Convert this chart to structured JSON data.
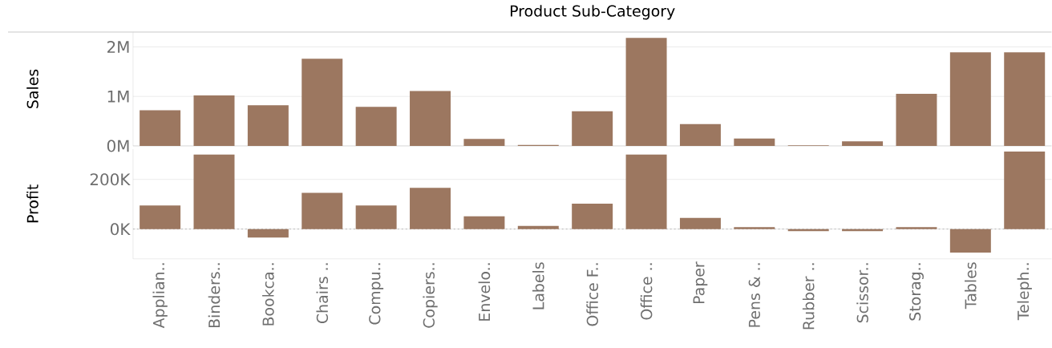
{
  "chart_data": [
    {
      "type": "bar",
      "title": "Product Sub-Category",
      "ylabel": "Sales",
      "categories": [
        null,
        null,
        null,
        null,
        null,
        null,
        null,
        null,
        null,
        null,
        null,
        null,
        null,
        null,
        null,
        null,
        null
      ],
      "values": [
        720000,
        1020000,
        820000,
        1760000,
        790000,
        1110000,
        140000,
        20000,
        700000,
        2180000,
        440000,
        150000,
        10000,
        90000,
        1050000,
        1890000,
        1890000
      ],
      "color": "#9c7760",
      "ylim": [
        0,
        2300000
      ],
      "yticks": [
        {
          "value": 0,
          "label": "0M"
        },
        {
          "value": 1000000,
          "label": "1M"
        },
        {
          "value": 2000000,
          "label": "2M"
        }
      ],
      "grid": "y",
      "tick_labels": "y"
    },
    {
      "type": "bar",
      "ylabel": "Profit",
      "categories": [
        "Applian..",
        "Binders..",
        "Bookca..",
        "Chairs ..",
        "Compu..",
        "Copiers..",
        "Envelo..",
        "Labels",
        "Office F..",
        "Office ..",
        "Paper",
        "Pens & ..",
        "Rubber ..",
        "Scissor..",
        "Storag..",
        "Tables",
        "Teleph.."
      ],
      "values": [
        95000,
        300000,
        -34000,
        146000,
        95000,
        166000,
        51000,
        13000,
        102000,
        300000,
        45000,
        8000,
        -8000,
        -8000,
        8000,
        -95000,
        312000
      ],
      "color": "#9c7760",
      "ylim": [
        -120000,
        322000
      ],
      "yticks": [
        {
          "value": 0,
          "label": "0K"
        },
        {
          "value": 200000,
          "label": "200K"
        }
      ],
      "grid": "y",
      "ref_lines": [
        {
          "axis": "y",
          "value": 0,
          "color": "#c0c0c0",
          "line_style": "dotted"
        }
      ]
    }
  ]
}
